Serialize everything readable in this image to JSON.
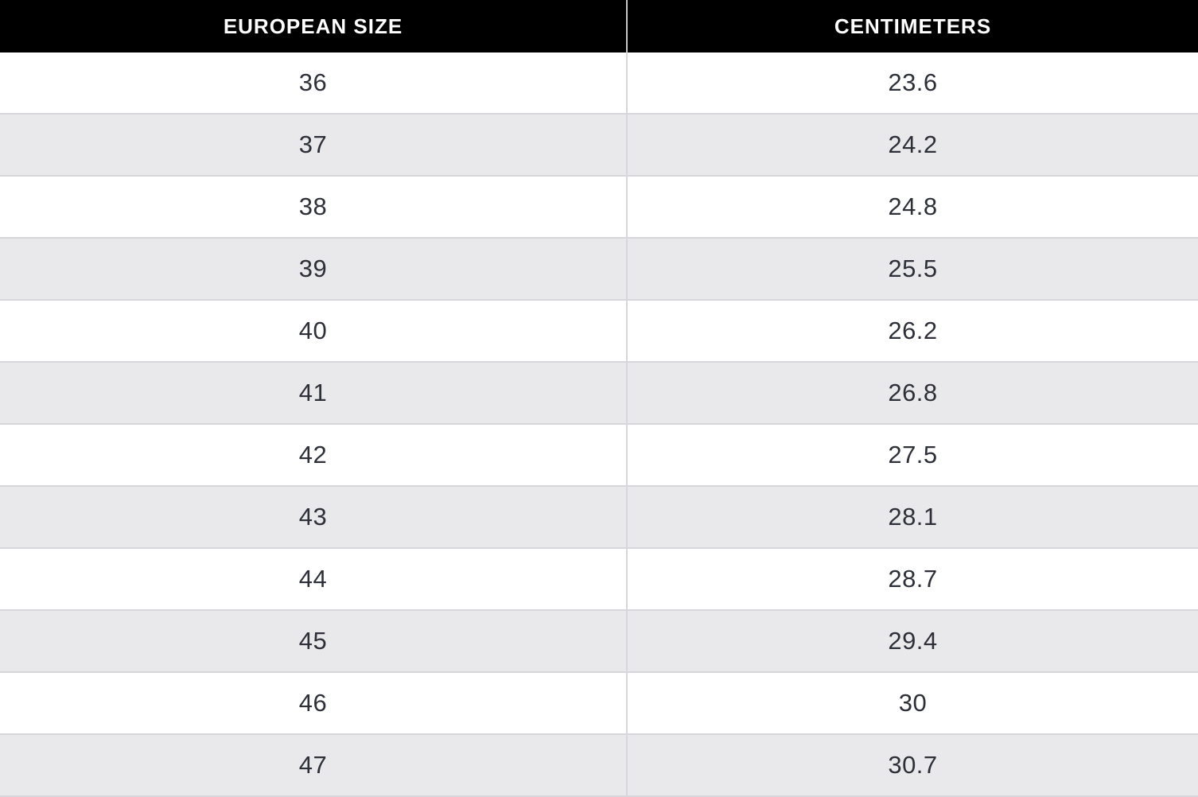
{
  "table": {
    "columns": [
      "EUROPEAN SIZE",
      "CENTIMETERS"
    ],
    "rows": [
      {
        "size": "36",
        "cm": "23.6"
      },
      {
        "size": "37",
        "cm": "24.2"
      },
      {
        "size": "38",
        "cm": "24.8"
      },
      {
        "size": "39",
        "cm": "25.5"
      },
      {
        "size": "40",
        "cm": "26.2"
      },
      {
        "size": "41",
        "cm": "26.8"
      },
      {
        "size": "42",
        "cm": "27.5"
      },
      {
        "size": "43",
        "cm": "28.1"
      },
      {
        "size": "44",
        "cm": "28.7"
      },
      {
        "size": "45",
        "cm": "29.4"
      },
      {
        "size": "46",
        "cm": "30"
      },
      {
        "size": "47",
        "cm": "30.7"
      }
    ]
  },
  "colors": {
    "header_bg": "#000000",
    "header_text": "#ffffff",
    "row_alt_bg": "#e9e8ea",
    "row_border": "#d8d6da",
    "body_text": "#2d3038"
  }
}
